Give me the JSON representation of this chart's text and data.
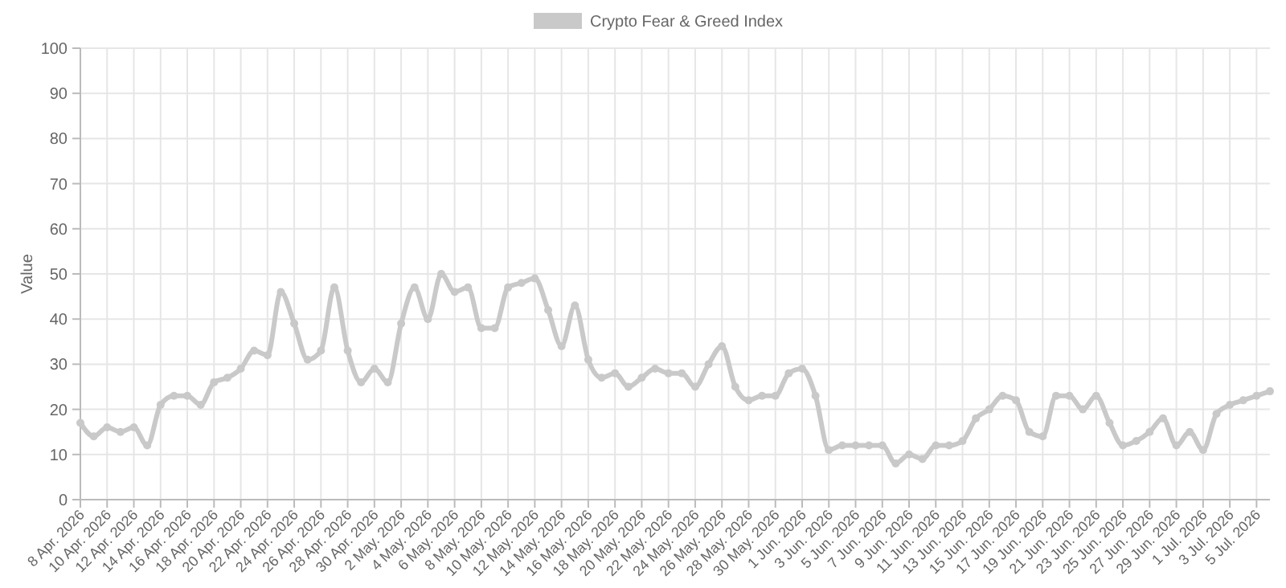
{
  "chart_data": {
    "type": "line",
    "ylabel": "Value",
    "legend": "top",
    "grid": true,
    "marker": "circle",
    "line_style": "solid",
    "categories": [
      "8 Apr. 2026",
      null,
      "10 Apr. 2026",
      null,
      "12 Apr. 2026",
      null,
      "14 Apr. 2026",
      null,
      "16 Apr. 2026",
      null,
      "18 Apr. 2026",
      null,
      "20 Apr. 2026",
      null,
      "22 Apr. 2026",
      null,
      "24 Apr. 2026",
      null,
      "26 Apr. 2026",
      null,
      "28 Apr. 2026",
      null,
      "30 Apr. 2026",
      null,
      "2 May. 2026",
      null,
      "4 May. 2026",
      null,
      "6 May. 2026",
      null,
      "8 May. 2026",
      null,
      "10 May. 2026",
      null,
      "12 May. 2026",
      null,
      "14 May. 2026",
      null,
      "16 May. 2026",
      null,
      "18 May. 2026",
      null,
      "20 May. 2026",
      null,
      "22 May. 2026",
      null,
      "24 May. 2026",
      null,
      "26 May. 2026",
      null,
      "28 May. 2026",
      null,
      "30 May. 2026",
      null,
      "1 Jun. 2026",
      null,
      "3 Jun. 2026",
      null,
      "5 Jun. 2026",
      null,
      "7 Jun. 2026",
      null,
      "9 Jun. 2026",
      null,
      "11 Jun. 2026",
      null,
      "13 Jun. 2026",
      null,
      "15 Jun. 2026",
      null,
      "17 Jun. 2026",
      null,
      "19 Jun. 2026",
      null,
      "21 Jun. 2026",
      null,
      "23 Jun. 2026",
      null,
      "25 Jun. 2026",
      null,
      "27 Jun. 2026",
      null,
      "29 Jun. 2026",
      null,
      "1 Jul. 2026",
      null,
      "3 Jul. 2026",
      null,
      "5 Jul. 2026",
      null
    ],
    "series": [
      {
        "name": "Crypto Fear & Greed Index",
        "color": "#c9c9c9",
        "values": [
          17,
          14,
          16,
          15,
          16,
          12,
          21,
          23,
          23,
          21,
          26,
          27,
          29,
          33,
          32,
          46,
          39,
          31,
          33,
          47,
          33,
          26,
          29,
          26,
          39,
          47,
          40,
          50,
          46,
          47,
          38,
          38,
          47,
          48,
          49,
          42,
          34,
          43,
          31,
          27,
          28,
          25,
          27,
          29,
          28,
          28,
          25,
          30,
          34,
          25,
          22,
          23,
          23,
          28,
          29,
          23,
          11,
          12,
          12,
          12,
          12,
          8,
          10,
          9,
          12,
          12,
          13,
          18,
          20,
          23,
          22,
          15,
          14,
          23,
          23,
          20,
          23,
          17,
          12,
          13,
          15,
          18,
          12,
          15,
          11,
          19,
          21,
          22,
          23,
          24
        ]
      }
    ],
    "ylim": [
      0,
      100
    ],
    "yticks": [
      0,
      10,
      20,
      30,
      40,
      50,
      60,
      70,
      80,
      90,
      100
    ]
  }
}
